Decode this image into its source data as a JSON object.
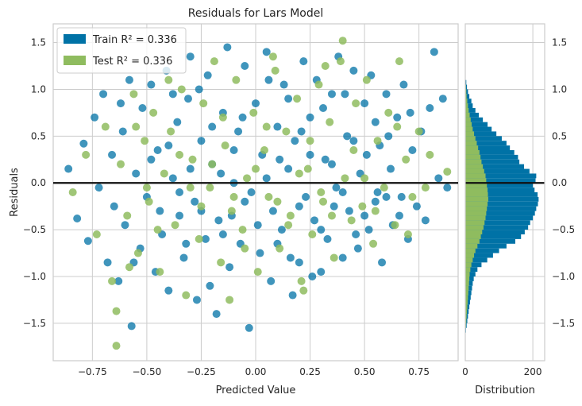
{
  "chart_data": {
    "type": "scatter",
    "title": "Residuals for Lars Model",
    "xlabel": "Predicted Value",
    "ylabel": "Residuals",
    "xlim": [
      -0.93,
      0.93
    ],
    "ylim": [
      -1.9,
      1.7
    ],
    "x_ticks": [
      "−0.75",
      "−0.50",
      "−0.25",
      "0.00",
      "0.25",
      "0.50",
      "0.75"
    ],
    "x_tick_values": [
      -0.75,
      -0.5,
      -0.25,
      0.0,
      0.25,
      0.5,
      0.75
    ],
    "y_ticks": [
      "−1.5",
      "−1.0",
      "−0.5",
      "0.0",
      "0.5",
      "1.0",
      "1.5"
    ],
    "y_tick_values": [
      -1.5,
      -1.0,
      -0.5,
      0.0,
      0.5,
      1.0,
      1.5
    ],
    "zero_line": 0,
    "series": [
      {
        "name": "Train",
        "legend_label": "Train R² = 0.336",
        "color": "#0072a6",
        "points": [
          [
            -0.86,
            0.15
          ],
          [
            -0.82,
            -0.38
          ],
          [
            -0.79,
            0.42
          ],
          [
            -0.77,
            -0.62
          ],
          [
            -0.74,
            0.7
          ],
          [
            -0.72,
            -0.05
          ],
          [
            -0.7,
            0.95
          ],
          [
            -0.68,
            -0.85
          ],
          [
            -0.66,
            0.3
          ],
          [
            -0.65,
            -0.25
          ],
          [
            -0.63,
            -1.05
          ],
          [
            -0.61,
            0.55
          ],
          [
            -0.6,
            -0.45
          ],
          [
            -0.58,
            1.1
          ],
          [
            -0.57,
            -1.53
          ],
          [
            -0.55,
            0.1
          ],
          [
            -0.53,
            -0.7
          ],
          [
            -0.52,
            0.8
          ],
          [
            -0.5,
            -0.15
          ],
          [
            -0.48,
            1.05
          ],
          [
            -0.46,
            -0.95
          ],
          [
            -0.45,
            0.35
          ],
          [
            -0.43,
            -0.55
          ],
          [
            -0.41,
            1.2
          ],
          [
            -0.4,
            -1.15
          ],
          [
            -0.38,
            0.05
          ],
          [
            -0.36,
            0.65
          ],
          [
            -0.35,
            -0.35
          ],
          [
            -0.33,
            -0.8
          ],
          [
            -0.31,
            0.9
          ],
          [
            -0.3,
            1.35
          ],
          [
            -0.28,
            -0.2
          ],
          [
            -0.27,
            -1.25
          ],
          [
            -0.25,
            0.45
          ],
          [
            -0.23,
            -0.6
          ],
          [
            -0.22,
            1.15
          ],
          [
            -0.2,
            0.2
          ],
          [
            -0.18,
            -1.4
          ],
          [
            -0.17,
            -0.4
          ],
          [
            -0.15,
            0.75
          ],
          [
            -0.13,
            1.45
          ],
          [
            -0.12,
            -0.9
          ],
          [
            -0.1,
            0.0
          ],
          [
            -0.08,
            0.55
          ],
          [
            -0.07,
            -0.65
          ],
          [
            -0.05,
            1.25
          ],
          [
            -0.03,
            -1.55
          ],
          [
            -0.02,
            -0.1
          ],
          [
            0.0,
            0.85
          ],
          [
            0.02,
            -0.75
          ],
          [
            0.03,
            0.3
          ],
          [
            0.05,
            1.4
          ],
          [
            0.07,
            -1.05
          ],
          [
            0.08,
            -0.3
          ],
          [
            0.1,
            0.6
          ],
          [
            0.12,
            -0.5
          ],
          [
            0.13,
            1.05
          ],
          [
            0.15,
            0.15
          ],
          [
            0.17,
            -1.2
          ],
          [
            0.18,
            0.45
          ],
          [
            0.2,
            -0.85
          ],
          [
            0.22,
            1.3
          ],
          [
            0.23,
            -0.15
          ],
          [
            0.25,
            0.7
          ],
          [
            0.27,
            -0.4
          ],
          [
            0.28,
            1.1
          ],
          [
            0.3,
            -0.95
          ],
          [
            0.32,
            0.25
          ],
          [
            0.33,
            -0.6
          ],
          [
            0.35,
            0.95
          ],
          [
            0.37,
            -0.05
          ],
          [
            0.38,
            1.35
          ],
          [
            0.4,
            -0.8
          ],
          [
            0.42,
            0.5
          ],
          [
            0.43,
            -0.3
          ],
          [
            0.45,
            1.2
          ],
          [
            0.47,
            -0.7
          ],
          [
            0.48,
            0.1
          ],
          [
            0.5,
            0.85
          ],
          [
            0.52,
            -0.5
          ],
          [
            0.53,
            1.15
          ],
          [
            0.55,
            -0.2
          ],
          [
            0.57,
            0.4
          ],
          [
            0.58,
            -0.85
          ],
          [
            0.6,
            0.95
          ],
          [
            0.62,
            0.15
          ],
          [
            0.63,
            -0.45
          ],
          [
            0.65,
            0.7
          ],
          [
            0.67,
            -0.15
          ],
          [
            0.68,
            1.05
          ],
          [
            0.7,
            -0.6
          ],
          [
            0.72,
            0.35
          ],
          [
            0.74,
            -0.25
          ],
          [
            0.76,
            0.55
          ],
          [
            0.78,
            -0.4
          ],
          [
            0.8,
            0.8
          ],
          [
            0.82,
            1.4
          ],
          [
            0.84,
            0.05
          ],
          [
            0.86,
            0.9
          ],
          [
            0.88,
            -0.05
          ],
          [
            -0.4,
            0.4
          ],
          [
            -0.35,
            -0.1
          ],
          [
            -0.3,
            0.15
          ],
          [
            -0.25,
            -0.3
          ],
          [
            -0.2,
            0.6
          ],
          [
            -0.15,
            -0.55
          ],
          [
            -0.1,
            0.35
          ],
          [
            -0.05,
            -0.2
          ],
          [
            0.05,
            0.05
          ],
          [
            0.1,
            -0.65
          ],
          [
            0.15,
            0.9
          ],
          [
            0.2,
            -0.25
          ],
          [
            0.25,
            0.3
          ],
          [
            0.3,
            -0.5
          ],
          [
            0.35,
            0.2
          ],
          [
            0.4,
            -0.1
          ],
          [
            0.45,
            0.45
          ],
          [
            0.5,
            -0.35
          ],
          [
            0.55,
            0.65
          ],
          [
            0.6,
            -0.15
          ],
          [
            -0.62,
            0.85
          ],
          [
            -0.56,
            -0.85
          ],
          [
            -0.48,
            0.25
          ],
          [
            -0.44,
            -0.3
          ],
          [
            -0.38,
            0.95
          ],
          [
            -0.32,
            -0.65
          ],
          [
            -0.26,
            1.0
          ],
          [
            -0.21,
            -1.1
          ],
          [
            -0.16,
            0.1
          ],
          [
            -0.11,
            -0.35
          ],
          [
            -0.06,
            0.7
          ],
          [
            0.01,
            -0.45
          ],
          [
            0.06,
            1.1
          ],
          [
            0.11,
            0.25
          ],
          [
            0.16,
            -0.8
          ],
          [
            0.21,
            0.55
          ],
          [
            0.26,
            -1.0
          ],
          [
            0.31,
            0.8
          ],
          [
            0.36,
            -0.25
          ],
          [
            0.41,
            0.95
          ],
          [
            0.46,
            -0.55
          ],
          [
            0.51,
            0.3
          ],
          [
            0.56,
            -0.1
          ],
          [
            0.61,
            0.5
          ],
          [
            0.66,
            -0.35
          ],
          [
            0.71,
            0.75
          ]
        ]
      },
      {
        "name": "Test",
        "legend_label": "Test R² = 0.336",
        "color": "#8fbc5f",
        "points": [
          [
            -0.84,
            -0.1
          ],
          [
            -0.78,
            0.3
          ],
          [
            -0.73,
            -0.55
          ],
          [
            -0.69,
            0.6
          ],
          [
            -0.66,
            -1.05
          ],
          [
            -0.64,
            -1.37
          ],
          [
            -0.64,
            -1.74
          ],
          [
            -0.62,
            0.2
          ],
          [
            -0.59,
            -0.35
          ],
          [
            -0.56,
            0.95
          ],
          [
            -0.54,
            -0.75
          ],
          [
            -0.51,
            0.45
          ],
          [
            -0.49,
            -0.2
          ],
          [
            -0.47,
            0.75
          ],
          [
            -0.44,
            -0.95
          ],
          [
            -0.42,
            0.1
          ],
          [
            -0.39,
            0.55
          ],
          [
            -0.37,
            -0.45
          ],
          [
            -0.34,
            1.0
          ],
          [
            -0.32,
            -1.2
          ],
          [
            -0.29,
            0.25
          ],
          [
            -0.26,
            -0.6
          ],
          [
            -0.24,
            0.85
          ],
          [
            -0.21,
            -0.05
          ],
          [
            -0.19,
            1.3
          ],
          [
            -0.16,
            -0.85
          ],
          [
            -0.14,
            0.4
          ],
          [
            -0.11,
            -0.3
          ],
          [
            -0.09,
            1.1
          ],
          [
            -0.06,
            -0.5
          ],
          [
            -0.04,
            0.05
          ],
          [
            -0.01,
            0.75
          ],
          [
            0.01,
            -0.95
          ],
          [
            0.04,
            0.35
          ],
          [
            0.06,
            -0.15
          ],
          [
            0.09,
            1.2
          ],
          [
            0.11,
            -0.7
          ],
          [
            0.14,
            0.55
          ],
          [
            0.16,
            -0.35
          ],
          [
            0.19,
            0.9
          ],
          [
            0.21,
            -1.05
          ],
          [
            0.24,
            0.15
          ],
          [
            0.26,
            -0.55
          ],
          [
            0.29,
            1.05
          ],
          [
            0.31,
            -0.2
          ],
          [
            0.34,
            0.65
          ],
          [
            0.36,
            -0.8
          ],
          [
            0.39,
            1.3
          ],
          [
            0.41,
            0.05
          ],
          [
            0.44,
            -0.4
          ],
          [
            0.46,
            0.85
          ],
          [
            0.49,
            -0.25
          ],
          [
            0.51,
            1.1
          ],
          [
            0.54,
            -0.65
          ],
          [
            0.56,
            0.45
          ],
          [
            0.59,
            -0.05
          ],
          [
            0.61,
            0.75
          ],
          [
            0.64,
            -0.45
          ],
          [
            0.66,
            1.3
          ],
          [
            0.69,
            0.25
          ],
          [
            0.72,
            -0.15
          ],
          [
            0.75,
            0.55
          ],
          [
            0.78,
            -0.05
          ],
          [
            0.8,
            0.3
          ],
          [
            0.88,
            0.12
          ],
          [
            0.4,
            1.52
          ],
          [
            -0.3,
            -0.05
          ],
          [
            -0.2,
            0.2
          ],
          [
            -0.1,
            -0.15
          ],
          [
            0.0,
            0.15
          ],
          [
            0.1,
            -0.2
          ],
          [
            0.2,
            0.1
          ],
          [
            0.3,
            -0.1
          ],
          [
            -0.5,
            -0.05
          ],
          [
            0.5,
            0.05
          ],
          [
            -0.55,
            0.6
          ],
          [
            -0.45,
            -0.5
          ],
          [
            -0.35,
            0.3
          ],
          [
            -0.25,
            -0.25
          ],
          [
            -0.15,
            0.7
          ],
          [
            -0.05,
            -0.7
          ],
          [
            0.05,
            0.6
          ],
          [
            0.15,
            -0.45
          ],
          [
            0.25,
            0.45
          ],
          [
            0.35,
            -0.35
          ],
          [
            0.45,
            0.35
          ],
          [
            0.55,
            -0.3
          ],
          [
            0.65,
            0.6
          ],
          [
            -0.4,
            1.1
          ],
          [
            0.08,
            1.35
          ],
          [
            0.22,
            -1.15
          ],
          [
            -0.12,
            -1.25
          ],
          [
            0.32,
            1.25
          ],
          [
            -0.58,
            -0.9
          ],
          [
            0.7,
            -0.55
          ]
        ]
      }
    ],
    "histogram": {
      "xlabel": "Distribution",
      "x_ticks": [
        "0",
        "200"
      ],
      "x_tick_values": [
        0,
        200
      ],
      "xlim": [
        0,
        235
      ],
      "bin_edges_start": -1.6,
      "bin_width": 0.05,
      "train_counts": [
        2,
        4,
        6,
        8,
        10,
        12,
        14,
        16,
        18,
        20,
        22,
        25,
        30,
        36,
        48,
        65,
        82,
        100,
        122,
        148,
        165,
        176,
        186,
        192,
        200,
        206,
        210,
        215,
        217,
        214,
        205,
        200,
        208,
        210,
        190,
        174,
        160,
        156,
        145,
        132,
        122,
        108,
        92,
        78,
        66,
        52,
        40,
        30,
        22,
        18,
        12,
        8,
        5,
        3
      ],
      "test_counts": [
        1,
        2,
        3,
        4,
        5,
        6,
        7,
        8,
        9,
        10,
        11,
        12,
        13,
        15,
        18,
        22,
        26,
        30,
        36,
        42,
        46,
        50,
        54,
        57,
        60,
        62,
        64,
        66,
        68,
        67,
        66,
        64,
        62,
        60,
        56,
        52,
        48,
        45,
        42,
        38,
        34,
        30,
        26,
        22,
        19,
        16,
        13,
        10,
        8,
        6,
        4,
        3,
        2,
        1
      ]
    }
  }
}
